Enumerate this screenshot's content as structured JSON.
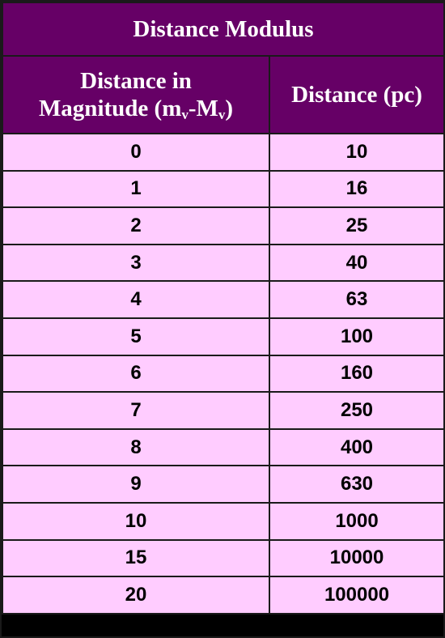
{
  "colors": {
    "header_bg": "#660066",
    "row_bg": "#ffccff",
    "grid": "#1a1a1a"
  },
  "chart_data": {
    "type": "table",
    "title": "Distance Modulus",
    "columns": [
      {
        "line1": "Distance in",
        "line2_prefix": "Magnitude (m",
        "sub1": "v",
        "mid": "-M",
        "sub2": "v",
        "suffix": ")"
      },
      {
        "text": "Distance (pc)"
      }
    ],
    "rows": [
      [
        "0",
        "10"
      ],
      [
        "1",
        "16"
      ],
      [
        "2",
        "25"
      ],
      [
        "3",
        "40"
      ],
      [
        "4",
        "63"
      ],
      [
        "5",
        "100"
      ],
      [
        "6",
        "160"
      ],
      [
        "7",
        "250"
      ],
      [
        "8",
        "400"
      ],
      [
        "9",
        "630"
      ],
      [
        "10",
        "1000"
      ],
      [
        "15",
        "10000"
      ],
      [
        "20",
        "100000"
      ]
    ]
  }
}
